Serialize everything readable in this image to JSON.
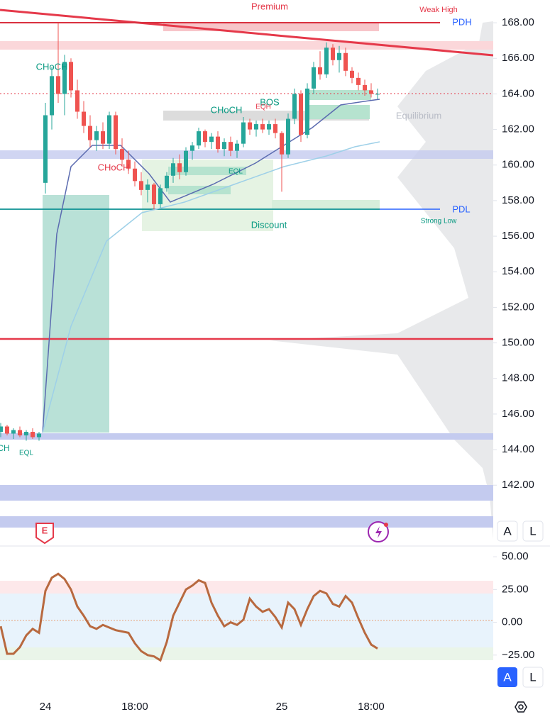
{
  "chart_data": [
    {
      "type": "candlestick",
      "up_color": "#26a69a",
      "down_color": "#ef5350",
      "ylim": [
        138.66,
        169.28
      ],
      "yticks": [
        {
          "value": 142,
          "label": "142.00"
        },
        {
          "value": 144,
          "label": "144.00"
        },
        {
          "value": 146,
          "label": "146.00"
        },
        {
          "value": 148,
          "label": "148.00"
        },
        {
          "value": 150,
          "label": "150.00"
        },
        {
          "value": 152,
          "label": "152.00"
        },
        {
          "value": 154,
          "label": "154.00"
        },
        {
          "value": 156,
          "label": "156.00"
        },
        {
          "value": 158,
          "label": "158.00"
        },
        {
          "value": 160,
          "label": "160.00"
        },
        {
          "value": 162,
          "label": "162.00"
        },
        {
          "value": 164,
          "label": "164.00"
        },
        {
          "value": 166,
          "label": "166.00"
        },
        {
          "value": 168,
          "label": "168.00"
        }
      ],
      "open": [
        145.0,
        145.3,
        144.9,
        145.1,
        144.8,
        145.0,
        144.7,
        159.0,
        162.8,
        165.0,
        164.0,
        165.8,
        164.2,
        163.0,
        162.2,
        161.4,
        161.9,
        161.2,
        162.8,
        160.9,
        160.3,
        159.8,
        159.1,
        158.6,
        158.9,
        157.8,
        158.7,
        159.4,
        160.1,
        159.6,
        160.8,
        161.1,
        161.9,
        161.3,
        161.6,
        160.9,
        161.3,
        160.8,
        161.2,
        162.4,
        162.0,
        162.3,
        162.0,
        162.3,
        161.8,
        160.6,
        162.6,
        164.0,
        161.7,
        164.3,
        165.5,
        165.1,
        166.6,
        165.9,
        166.3,
        165.3,
        164.9,
        164.5,
        164.2,
        164.0
      ],
      "high": [
        145.5,
        145.4,
        145.2,
        145.3,
        145.1,
        145.2,
        145.0,
        163.5,
        165.5,
        168.0,
        166.2,
        166.0,
        164.8,
        163.6,
        162.8,
        162.2,
        162.4,
        163.0,
        163.0,
        161.5,
        160.8,
        160.2,
        159.6,
        159.2,
        159.0,
        158.9,
        159.6,
        160.4,
        160.6,
        161.0,
        161.3,
        162.1,
        162.0,
        161.8,
        161.9,
        161.5,
        161.6,
        161.4,
        162.7,
        162.6,
        162.5,
        162.6,
        162.5,
        162.6,
        161.9,
        162.9,
        164.3,
        164.2,
        164.6,
        165.8,
        166.4,
        166.9,
        166.8,
        166.7,
        166.6,
        165.5,
        165.2,
        164.8,
        164.6,
        164.3
      ],
      "low": [
        144.7,
        144.8,
        144.6,
        144.7,
        144.5,
        144.6,
        144.5,
        158.4,
        162.0,
        163.5,
        162.8,
        163.8,
        162.6,
        161.8,
        161.0,
        160.8,
        160.9,
        160.9,
        160.6,
        159.9,
        159.5,
        158.8,
        158.3,
        157.9,
        157.5,
        157.6,
        158.5,
        159.0,
        159.2,
        159.4,
        160.3,
        160.9,
        161.0,
        160.9,
        160.7,
        160.5,
        160.5,
        160.4,
        161.0,
        161.7,
        161.6,
        161.8,
        161.7,
        161.5,
        158.5,
        160.4,
        162.3,
        161.3,
        161.5,
        164.0,
        164.8,
        164.9,
        165.6,
        165.2,
        165.0,
        164.6,
        164.2,
        163.9,
        163.8,
        163.7
      ],
      "close": [
        145.3,
        144.9,
        145.1,
        144.8,
        145.0,
        144.7,
        144.9,
        162.8,
        165.0,
        164.0,
        165.8,
        164.2,
        163.0,
        162.2,
        161.4,
        161.9,
        161.2,
        162.8,
        160.9,
        160.3,
        159.8,
        159.1,
        158.6,
        158.9,
        157.8,
        158.7,
        159.4,
        160.1,
        159.6,
        160.8,
        161.1,
        161.9,
        161.3,
        161.6,
        160.9,
        161.3,
        160.8,
        161.2,
        162.4,
        162.0,
        162.3,
        162.0,
        162.3,
        161.8,
        160.6,
        162.6,
        164.0,
        161.7,
        164.3,
        165.5,
        165.1,
        166.6,
        165.9,
        166.3,
        165.3,
        164.9,
        164.5,
        164.2,
        164.0,
        164.0
      ],
      "annotations": [
        "Premium",
        "Weak High",
        "PDH",
        "CHoCH",
        "CHoCH",
        "CHoCH",
        "BOS",
        "EQH",
        "EQL",
        "EQL",
        "CH",
        "Equilibrium",
        "PDL",
        "Strong Low",
        "Discount"
      ]
    },
    {
      "type": "line",
      "categories": [
        null,
        null,
        null,
        null,
        null,
        null,
        null,
        "24",
        null,
        null,
        null,
        null,
        null,
        null,
        null,
        null,
        null,
        null,
        null,
        null,
        null,
        "18:00",
        null,
        null,
        null,
        null,
        null,
        null,
        null,
        null,
        null,
        null,
        null,
        null,
        null,
        null,
        null,
        null,
        null,
        null,
        null,
        null,
        null,
        null,
        "25",
        null,
        null,
        null,
        null,
        null,
        null,
        null,
        null,
        null,
        null,
        null,
        null,
        null,
        "18:00",
        null
      ],
      "series": [
        {
          "color": "#b8693f",
          "values": [
            -3,
            -24,
            -24,
            -19,
            -10,
            -5,
            -8,
            24,
            34,
            37,
            33,
            25,
            12,
            5,
            -3,
            -5,
            -2,
            -4,
            -6,
            -7,
            -8,
            -16,
            -22,
            -25,
            -26,
            -29,
            -15,
            5,
            15,
            25,
            28,
            32,
            30,
            15,
            5,
            -3,
            0,
            -2,
            2,
            18,
            12,
            8,
            10,
            4,
            -4,
            15,
            10,
            -2,
            10,
            20,
            24,
            22,
            14,
            12,
            20,
            15,
            3,
            -8,
            -17,
            -20
          ]
        }
      ],
      "ylim": [
        -48.9,
        57.1
      ],
      "yticks": [
        {
          "value": -25,
          "label": "−25.00"
        },
        {
          "value": 0,
          "label": "0.00"
        },
        {
          "value": 25,
          "label": "25.00"
        },
        {
          "value": 50,
          "label": "50.00"
        }
      ]
    }
  ],
  "ui": {
    "auto_button": "A",
    "log_button": "L",
    "earnings_marker": "E"
  }
}
